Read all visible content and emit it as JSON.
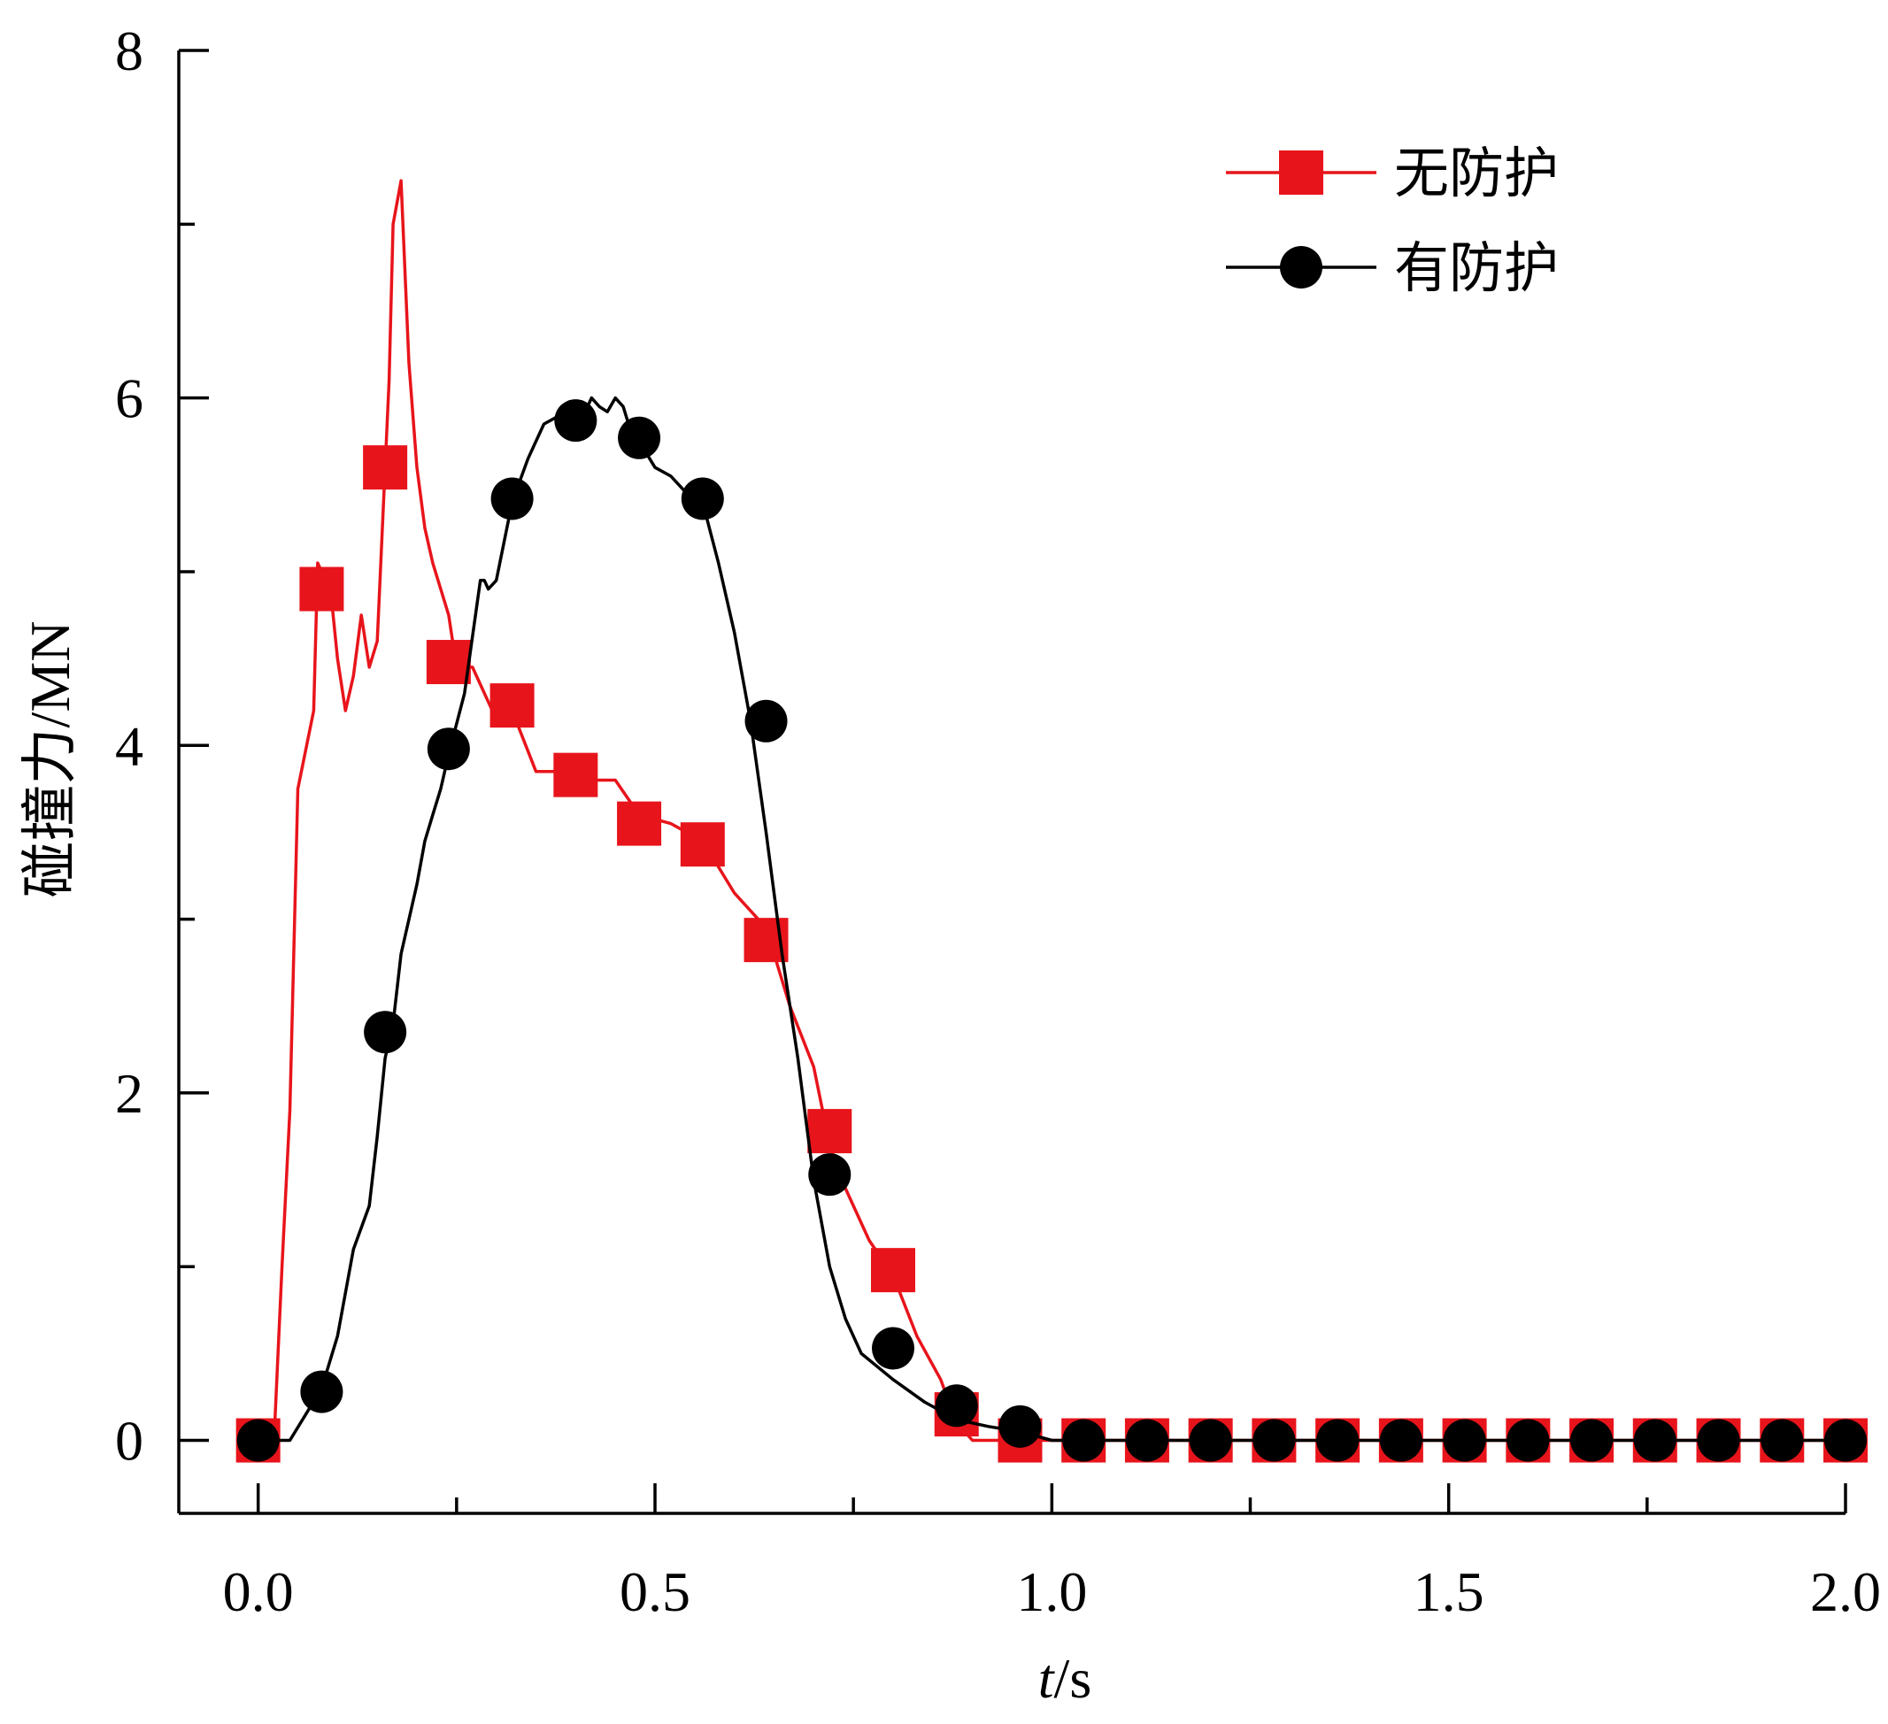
{
  "chart_data": {
    "type": "line",
    "xlabel": {
      "italic": "t",
      "rest": "/s"
    },
    "ylabel": "碰撞力/MN",
    "xlim": [
      -0.1,
      2.0
    ],
    "ylim": [
      -0.42,
      8.0
    ],
    "xticks": [
      "0.0",
      "0.5",
      "1.0",
      "1.5",
      "2.0"
    ],
    "xtick_values": [
      0.0,
      0.5,
      1.0,
      1.5,
      2.0
    ],
    "xminor_values": [
      0.25,
      0.75,
      1.25,
      1.75
    ],
    "yticks": [
      "0",
      "2",
      "4",
      "6",
      "8"
    ],
    "ytick_values": [
      0,
      2,
      4,
      6,
      8
    ],
    "yminor_values": [
      1,
      3,
      5,
      7
    ],
    "legend_position": "top-right",
    "series": [
      {
        "name": "无防护",
        "color": "#e8141b",
        "marker": "square",
        "x": [
          0.0,
          0.02,
          0.03,
          0.04,
          0.05,
          0.07,
          0.075,
          0.08,
          0.09,
          0.1,
          0.11,
          0.12,
          0.13,
          0.14,
          0.15,
          0.16,
          0.165,
          0.17,
          0.18,
          0.19,
          0.2,
          0.21,
          0.22,
          0.24,
          0.25,
          0.27,
          0.3,
          0.32,
          0.35,
          0.38,
          0.4,
          0.45,
          0.48,
          0.52,
          0.56,
          0.6,
          0.64,
          0.67,
          0.7,
          0.72,
          0.74,
          0.77,
          0.8,
          0.83,
          0.86,
          0.88,
          0.9,
          0.95,
          1.0,
          2.0
        ],
        "y": [
          0.0,
          0.0,
          1.0,
          1.9,
          3.75,
          4.2,
          5.05,
          5.0,
          4.95,
          4.5,
          4.2,
          4.4,
          4.75,
          4.45,
          4.6,
          5.6,
          6.1,
          7.0,
          7.25,
          6.2,
          5.6,
          5.25,
          5.05,
          4.75,
          4.45,
          4.45,
          4.15,
          4.2,
          3.85,
          3.85,
          3.8,
          3.8,
          3.6,
          3.55,
          3.45,
          3.15,
          2.95,
          2.5,
          2.15,
          1.7,
          1.45,
          1.15,
          0.95,
          0.6,
          0.35,
          0.1,
          0.0,
          0.0,
          0.0,
          0.0
        ],
        "marker_x": [
          0.0,
          0.08,
          0.16,
          0.24,
          0.32,
          0.4,
          0.48,
          0.56,
          0.64,
          0.72,
          0.8,
          0.88,
          0.96,
          1.04,
          1.12,
          1.2,
          1.28,
          1.36,
          1.44,
          1.52,
          1.6,
          1.68,
          1.76,
          1.84,
          1.92,
          2.0
        ],
        "marker_y": [
          0.0,
          4.9,
          5.6,
          4.48,
          4.23,
          3.83,
          3.55,
          3.43,
          2.88,
          1.78,
          0.98,
          0.15,
          0.0,
          0.0,
          0.0,
          0.0,
          0.0,
          0.0,
          0.0,
          0.0,
          0.0,
          0.0,
          0.0,
          0.0,
          0.0,
          0.0
        ]
      },
      {
        "name": "有防护",
        "color": "#000000",
        "marker": "circle",
        "x": [
          0.0,
          0.04,
          0.06,
          0.08,
          0.1,
          0.11,
          0.12,
          0.14,
          0.15,
          0.16,
          0.17,
          0.18,
          0.2,
          0.21,
          0.22,
          0.23,
          0.24,
          0.26,
          0.28,
          0.285,
          0.29,
          0.3,
          0.32,
          0.34,
          0.36,
          0.38,
          0.4,
          0.41,
          0.42,
          0.43,
          0.44,
          0.45,
          0.46,
          0.47,
          0.48,
          0.5,
          0.52,
          0.54,
          0.56,
          0.58,
          0.6,
          0.62,
          0.64,
          0.66,
          0.68,
          0.7,
          0.72,
          0.74,
          0.76,
          0.8,
          0.84,
          0.88,
          0.92,
          0.96,
          1.0,
          2.0
        ],
        "y": [
          0.0,
          0.0,
          0.15,
          0.3,
          0.6,
          0.85,
          1.1,
          1.35,
          1.75,
          2.2,
          2.4,
          2.8,
          3.2,
          3.45,
          3.6,
          3.75,
          3.95,
          4.3,
          4.95,
          4.95,
          4.9,
          4.95,
          5.4,
          5.65,
          5.85,
          5.9,
          5.95,
          5.9,
          6.0,
          5.95,
          5.92,
          6.0,
          5.95,
          5.8,
          5.75,
          5.6,
          5.55,
          5.45,
          5.4,
          5.05,
          4.65,
          4.15,
          3.5,
          2.8,
          2.2,
          1.5,
          1.0,
          0.7,
          0.5,
          0.35,
          0.22,
          0.12,
          0.08,
          0.05,
          0.0,
          0.0
        ],
        "marker_x": [
          0.0,
          0.08,
          0.16,
          0.24,
          0.32,
          0.4,
          0.48,
          0.56,
          0.64,
          0.72,
          0.8,
          0.88,
          0.96,
          1.04,
          1.12,
          1.2,
          1.28,
          1.36,
          1.44,
          1.52,
          1.6,
          1.68,
          1.76,
          1.84,
          1.92,
          2.0
        ],
        "marker_y": [
          0.0,
          0.28,
          2.35,
          3.98,
          5.42,
          5.87,
          5.77,
          5.42,
          4.14,
          1.53,
          0.53,
          0.2,
          0.08,
          0.0,
          0.0,
          0.0,
          0.0,
          0.0,
          0.0,
          0.0,
          0.0,
          0.0,
          0.0,
          0.0,
          0.0,
          0.0
        ]
      }
    ]
  }
}
